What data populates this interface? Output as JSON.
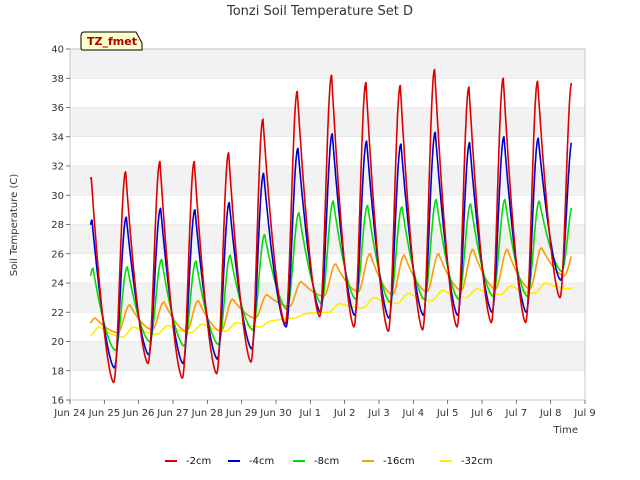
{
  "chart_data": {
    "type": "line",
    "title": "Tonzi Soil Temperature Set D",
    "xlabel": "Time",
    "ylabel": "Soil Temperature (C)",
    "badge": "TZ_fmet",
    "xlim": [
      0,
      15
    ],
    "ylim": [
      16,
      40
    ],
    "yticks": [
      16,
      18,
      20,
      22,
      24,
      26,
      28,
      30,
      32,
      34,
      36,
      38,
      40
    ],
    "xticks": [
      "Jun 24",
      "Jun 25",
      "Jun 26",
      "Jun 27",
      "Jun 28",
      "Jun 29",
      "Jun 30",
      "Jul 1",
      "Jul 2",
      "Jul 3",
      "Jul 4",
      "Jul 5",
      "Jul 6",
      "Jul 7",
      "Jul 8",
      "Jul 9"
    ],
    "x_data_range_days": [
      0.6,
      14.6
    ],
    "grid": true,
    "legend_position": "bottom",
    "series": [
      {
        "name": "-2cm",
        "color": "#dd0000",
        "daily_min": [
          17.4,
          17.2,
          18.5,
          17.5,
          17.8,
          18.6,
          21.2,
          21.7,
          21.0,
          20.7,
          20.8,
          21.0,
          21.3,
          21.3,
          23.0
        ],
        "daily_max": [
          31.2,
          31.6,
          32.3,
          32.3,
          32.9,
          35.2,
          37.1,
          38.2,
          37.7,
          37.5,
          38.6,
          37.4,
          38.0,
          37.8,
          37.8
        ]
      },
      {
        "name": "-4cm",
        "color": "#0000cc",
        "daily_min": [
          18.4,
          18.2,
          19.1,
          18.5,
          18.8,
          19.5,
          21.0,
          22.0,
          21.8,
          21.6,
          21.8,
          21.8,
          22.0,
          22.0,
          24.2
        ],
        "daily_max": [
          28.3,
          28.5,
          29.1,
          29.0,
          29.5,
          31.5,
          33.2,
          34.2,
          33.7,
          33.5,
          34.3,
          33.6,
          34.0,
          33.9,
          33.9
        ]
      },
      {
        "name": "-8cm",
        "color": "#00dd00",
        "daily_min": [
          19.6,
          19.4,
          20.0,
          19.7,
          19.8,
          20.8,
          22.2,
          22.6,
          22.9,
          22.7,
          22.9,
          22.9,
          23.1,
          23.1,
          24.8
        ],
        "daily_max": [
          25.0,
          25.1,
          25.6,
          25.5,
          25.9,
          27.3,
          28.8,
          29.6,
          29.3,
          29.2,
          29.7,
          29.4,
          29.7,
          29.6,
          29.6
        ]
      },
      {
        "name": "-16cm",
        "color": "#ff9900",
        "daily_min": [
          20.6,
          20.6,
          20.8,
          20.7,
          20.7,
          21.6,
          22.4,
          23.1,
          23.4,
          23.2,
          23.4,
          23.5,
          23.6,
          23.6,
          24.5
        ],
        "daily_max": [
          21.6,
          22.5,
          22.7,
          22.8,
          22.9,
          23.2,
          24.1,
          25.3,
          26.0,
          25.9,
          26.0,
          26.3,
          26.3,
          26.4,
          26.5
        ]
      },
      {
        "name": "-32cm",
        "color": "#ffee00",
        "daily_min": [
          20.3,
          20.3,
          20.5,
          20.6,
          20.7,
          21.0,
          21.6,
          22.0,
          22.3,
          22.6,
          22.8,
          23.0,
          23.2,
          23.3,
          23.6
        ],
        "daily_max": [
          21.0,
          21.0,
          21.1,
          21.2,
          21.3,
          21.4,
          21.9,
          22.6,
          23.0,
          23.3,
          23.5,
          23.6,
          23.8,
          24.0,
          24.1
        ]
      }
    ]
  }
}
